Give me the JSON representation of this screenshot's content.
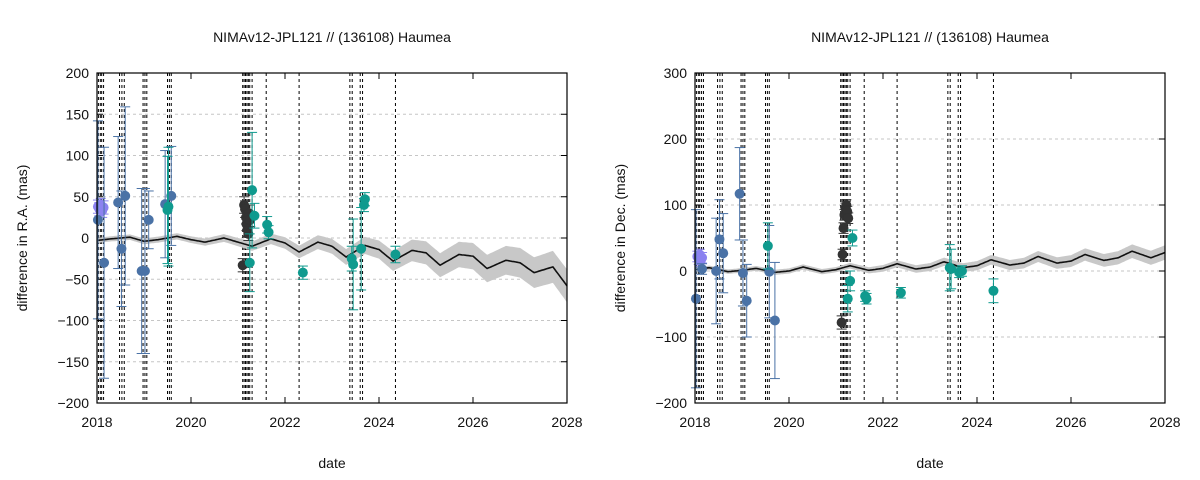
{
  "chart_data": [
    {
      "type": "scatter",
      "title": "NIMAv12-JPL121 // (136108) Haumea",
      "xlabel": "date",
      "ylabel": "difference in R.A. (mas)",
      "xlim": [
        2018,
        2028
      ],
      "ylim": [
        -200,
        200
      ],
      "xticks": [
        "2018",
        "2020",
        "2022",
        "2024",
        "2026",
        "2028"
      ],
      "yticks": [
        "-200",
        "-150",
        "-100",
        "-50",
        "0",
        "50",
        "100",
        "150",
        "200"
      ],
      "grid": true,
      "legend": "none",
      "model": {
        "name": "",
        "center": [
          [
            2018.0,
            -3
          ],
          [
            2018.3,
            -1
          ],
          [
            2018.7,
            1
          ],
          [
            2019.0,
            -4
          ],
          [
            2019.3,
            -2
          ],
          [
            2019.7,
            2
          ],
          [
            2020.0,
            -2
          ],
          [
            2020.3,
            -5
          ],
          [
            2020.7,
            0
          ],
          [
            2021.0,
            -5
          ],
          [
            2021.3,
            -10
          ],
          [
            2021.7,
            -1
          ],
          [
            2022.0,
            -6
          ],
          [
            2022.3,
            -17
          ],
          [
            2022.7,
            -5
          ],
          [
            2023.0,
            -10
          ],
          [
            2023.3,
            -23
          ],
          [
            2023.7,
            -9
          ],
          [
            2024.0,
            -14
          ],
          [
            2024.3,
            -28
          ],
          [
            2024.7,
            -15
          ],
          [
            2025.0,
            -18
          ],
          [
            2025.3,
            -33
          ],
          [
            2025.7,
            -20
          ],
          [
            2026.0,
            -22
          ],
          [
            2026.3,
            -37
          ],
          [
            2026.7,
            -27
          ],
          [
            2027.0,
            -30
          ],
          [
            2027.3,
            -42
          ],
          [
            2027.7,
            -35
          ],
          [
            2028.0,
            -58
          ]
        ],
        "band": [
          [
            2018.0,
            3
          ],
          [
            2020.0,
            4
          ],
          [
            2021.0,
            5
          ],
          [
            2022.0,
            7
          ],
          [
            2023.0,
            9
          ],
          [
            2024.0,
            11
          ],
          [
            2025.0,
            14
          ],
          [
            2026.0,
            16
          ],
          [
            2027.0,
            18
          ],
          [
            2028.0,
            20
          ]
        ],
        "color": "#111111",
        "band_color": "#c8c8c8"
      },
      "vlines": [
        2018.03,
        2018.07,
        2018.1,
        2018.14,
        2018.48,
        2018.53,
        2018.58,
        2018.98,
        2019.02,
        2019.06,
        2019.5,
        2019.54,
        2019.58,
        2021.1,
        2021.13,
        2021.16,
        2021.19,
        2021.22,
        2021.25,
        2021.3,
        2021.6,
        2022.3,
        2023.38,
        2023.43,
        2023.6,
        2023.65,
        2024.35
      ],
      "series": [
        {
          "color": "#8b82f0",
          "points": [
            [
              2018.02,
              38,
              8
            ],
            [
              2018.05,
              35,
              8
            ],
            [
              2018.08,
              40,
              8
            ],
            [
              2018.11,
              33,
              8
            ],
            [
              2018.14,
              37,
              8
            ]
          ]
        },
        {
          "color": "#4a72a6",
          "points": [
            [
              2018.02,
              22,
              120
            ],
            [
              2018.15,
              -30,
              140
            ],
            [
              2018.45,
              43,
              80
            ],
            [
              2018.52,
              -13,
              70
            ],
            [
              2018.6,
              51,
              108
            ],
            [
              2018.95,
              -40,
              100
            ],
            [
              2019.02,
              -40,
              100
            ],
            [
              2019.1,
              22,
              35
            ],
            [
              2019.45,
              41,
              65
            ],
            [
              2019.58,
              51,
              60
            ]
          ]
        },
        {
          "color": "#333333",
          "points": [
            [
              2021.1,
              -33,
              8
            ],
            [
              2021.13,
              40,
              10
            ],
            [
              2021.15,
              35,
              10
            ],
            [
              2021.17,
              25,
              8
            ],
            [
              2021.18,
              17,
              8
            ],
            [
              2021.2,
              10,
              8
            ],
            [
              2021.22,
              5,
              8
            ],
            [
              2021.24,
              30,
              10
            ],
            [
              2021.26,
              22,
              8
            ]
          ]
        },
        {
          "color": "#0f9a8e",
          "points": [
            [
              2019.5,
              34,
              65
            ],
            [
              2019.52,
              38,
              72
            ],
            [
              2021.25,
              -30,
              35
            ],
            [
              2021.3,
              58,
              70
            ],
            [
              2021.35,
              27,
              15
            ],
            [
              2021.62,
              16,
              10
            ],
            [
              2021.65,
              7,
              8
            ],
            [
              2022.38,
              -42,
              8
            ],
            [
              2023.42,
              -25,
              15
            ],
            [
              2023.45,
              -32,
              55
            ],
            [
              2023.62,
              -13,
              50
            ],
            [
              2023.68,
              40,
              8
            ],
            [
              2023.7,
              47,
              8
            ],
            [
              2024.35,
              -20,
              10
            ]
          ]
        }
      ]
    },
    {
      "type": "scatter",
      "title": "NIMAv12-JPL121 // (136108) Haumea",
      "xlabel": "date",
      "ylabel": "difference in Dec. (mas)",
      "xlim": [
        2018,
        2028
      ],
      "ylim": [
        -200,
        300
      ],
      "xticks": [
        "2018",
        "2020",
        "2022",
        "2024",
        "2026",
        "2028"
      ],
      "yticks": [
        "-200",
        "-100",
        "0",
        "100",
        "200",
        "300"
      ],
      "grid": true,
      "legend": "none",
      "model": {
        "name": "",
        "center": [
          [
            2018.0,
            2
          ],
          [
            2018.3,
            5
          ],
          [
            2018.7,
            -1
          ],
          [
            2019.0,
            1
          ],
          [
            2019.3,
            4
          ],
          [
            2019.7,
            -2
          ],
          [
            2020.0,
            0
          ],
          [
            2020.3,
            6
          ],
          [
            2020.7,
            -1
          ],
          [
            2021.0,
            2
          ],
          [
            2021.3,
            8
          ],
          [
            2021.7,
            1
          ],
          [
            2022.0,
            4
          ],
          [
            2022.3,
            11
          ],
          [
            2022.7,
            3
          ],
          [
            2023.0,
            6
          ],
          [
            2023.3,
            14
          ],
          [
            2023.7,
            5
          ],
          [
            2024.0,
            8
          ],
          [
            2024.3,
            17
          ],
          [
            2024.7,
            9
          ],
          [
            2025.0,
            12
          ],
          [
            2025.3,
            22
          ],
          [
            2025.7,
            12
          ],
          [
            2026.0,
            15
          ],
          [
            2026.3,
            25
          ],
          [
            2026.7,
            16
          ],
          [
            2027.0,
            20
          ],
          [
            2027.3,
            30
          ],
          [
            2027.7,
            20
          ],
          [
            2028.0,
            28
          ]
        ],
        "band": [
          [
            2018.0,
            3
          ],
          [
            2020.0,
            4
          ],
          [
            2021.0,
            4
          ],
          [
            2022.0,
            5
          ],
          [
            2023.0,
            6
          ],
          [
            2024.0,
            7
          ],
          [
            2025.0,
            8
          ],
          [
            2026.0,
            9
          ],
          [
            2027.0,
            10
          ],
          [
            2028.0,
            11
          ]
        ],
        "color": "#111111",
        "band_color": "#c8c8c8"
      },
      "vlines": [
        2018.03,
        2018.07,
        2018.1,
        2018.14,
        2018.18,
        2018.48,
        2018.53,
        2018.58,
        2018.98,
        2019.02,
        2019.06,
        2019.5,
        2019.54,
        2019.58,
        2021.1,
        2021.13,
        2021.16,
        2021.19,
        2021.22,
        2021.25,
        2021.3,
        2021.6,
        2022.3,
        2023.38,
        2023.43,
        2023.6,
        2023.65,
        2024.35
      ],
      "series": [
        {
          "color": "#8b82f0",
          "points": [
            [
              2018.05,
              22,
              8
            ],
            [
              2018.08,
              18,
              8
            ],
            [
              2018.1,
              25,
              8
            ],
            [
              2018.12,
              15,
              8
            ],
            [
              2018.15,
              20,
              8
            ]
          ]
        },
        {
          "color": "#4a72a6",
          "points": [
            [
              2018.02,
              -42,
              135
            ],
            [
              2018.15,
              3,
              8
            ],
            [
              2018.45,
              0,
              80
            ],
            [
              2018.52,
              48,
              60
            ],
            [
              2018.6,
              27,
              60
            ],
            [
              2018.95,
              117,
              70
            ],
            [
              2019.02,
              -3,
              50
            ],
            [
              2019.1,
              -45,
              55
            ],
            [
              2019.58,
              -1,
              70
            ],
            [
              2019.7,
              -75,
              88
            ]
          ]
        },
        {
          "color": "#333333",
          "points": [
            [
              2021.12,
              -78,
              10
            ],
            [
              2021.14,
              25,
              8
            ],
            [
              2021.16,
              65,
              8
            ],
            [
              2021.18,
              85,
              8
            ],
            [
              2021.2,
              95,
              8
            ],
            [
              2021.22,
              100,
              8
            ],
            [
              2021.24,
              90,
              8
            ],
            [
              2021.26,
              80,
              8
            ]
          ]
        },
        {
          "color": "#0f9a8e",
          "points": [
            [
              2019.55,
              38,
              35
            ],
            [
              2021.25,
              -42,
              20
            ],
            [
              2021.3,
              -15,
              15
            ],
            [
              2021.35,
              50,
              12
            ],
            [
              2021.62,
              -38,
              8
            ],
            [
              2021.65,
              -42,
              8
            ],
            [
              2022.38,
              -33,
              8
            ],
            [
              2023.42,
              5,
              35
            ],
            [
              2023.45,
              3,
              30
            ],
            [
              2023.62,
              -2,
              8
            ],
            [
              2023.68,
              0,
              8
            ],
            [
              2024.35,
              -30,
              18
            ]
          ]
        }
      ]
    }
  ]
}
